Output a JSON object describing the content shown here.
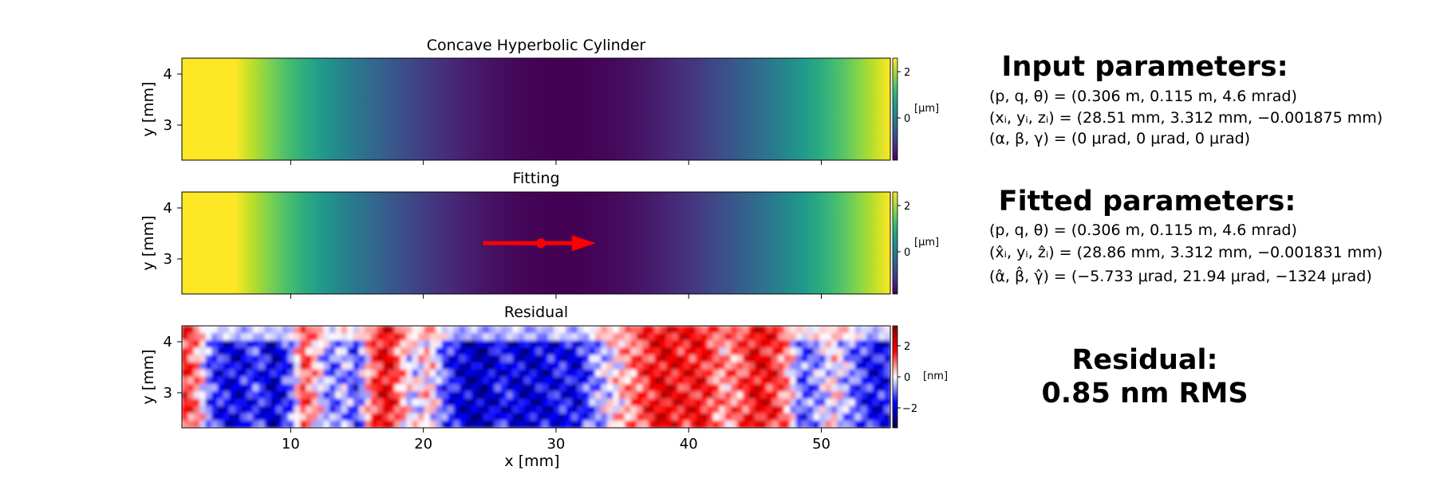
{
  "chart_data": [
    {
      "type": "heatmap",
      "title": "Concave Hyperbolic Cylinder",
      "ylabel": "y [mm]",
      "xlim": [
        1.8,
        55.2
      ],
      "ylim": [
        2.3,
        4.35
      ],
      "yticks": [
        "3",
        "4"
      ],
      "colormap": "viridis",
      "colorbar": {
        "label": "[μm]",
        "ticks": [
          "0",
          "2"
        ],
        "range": [
          -1.3,
          2.6
        ]
      },
      "profile": "parabolic in x, minimum near x = 30 mm"
    },
    {
      "type": "heatmap",
      "title": "Fitting",
      "ylabel": "y [mm]",
      "xlim": [
        1.8,
        55.2
      ],
      "ylim": [
        2.3,
        4.35
      ],
      "yticks": [
        "3",
        "4"
      ],
      "colormap": "viridis",
      "colorbar": {
        "label": "[μm]",
        "ticks": [
          "0",
          "2"
        ],
        "range": [
          -1.3,
          2.6
        ]
      },
      "arrow": {
        "x_start": 24.5,
        "x_end": 33.0,
        "y": 3.32,
        "marker_x": 28.86,
        "color": "#ff0000"
      }
    },
    {
      "type": "heatmap",
      "title": "Residual",
      "ylabel": "y [mm]",
      "xlabel": "x [mm]",
      "xlim": [
        1.8,
        55.2
      ],
      "ylim": [
        2.3,
        4.35
      ],
      "xticks": [
        "10",
        "20",
        "30",
        "40",
        "50"
      ],
      "yticks": [
        "3",
        "4"
      ],
      "colormap": "seismic",
      "colorbar": {
        "label": "[nm]",
        "ticks": [
          "−2",
          "0",
          "2"
        ],
        "range": [
          -3,
          3
        ]
      }
    }
  ],
  "input_params": {
    "title": "Input parameters:",
    "line1": "(p, q, θ) = (0.306 m, 0.115 m, 4.6 mrad)",
    "line2": "(xᵢ, yᵢ, zᵢ) = (28.51 mm, 3.312 mm, −0.001875 mm)",
    "line3": "(α, β, γ) = (0 μrad, 0 μrad, 0 μrad)"
  },
  "fitted_params": {
    "title": "Fitted parameters:",
    "line1": "(p, q, θ) = (0.306 m, 0.115 m, 4.6 mrad)",
    "line2": "(x̂ᵢ, yᵢ, ẑᵢ) = (28.86 mm, 3.312 mm, −0.001831 mm)",
    "line3": "(α̂, β̂, γ̂) = (−5.733 μrad, 21.94 μrad, −1324 μrad)"
  },
  "residual_summary": {
    "line1": "Residual:",
    "line2": "0.85 nm RMS"
  },
  "colors": {
    "arrow": "#ff0000"
  }
}
